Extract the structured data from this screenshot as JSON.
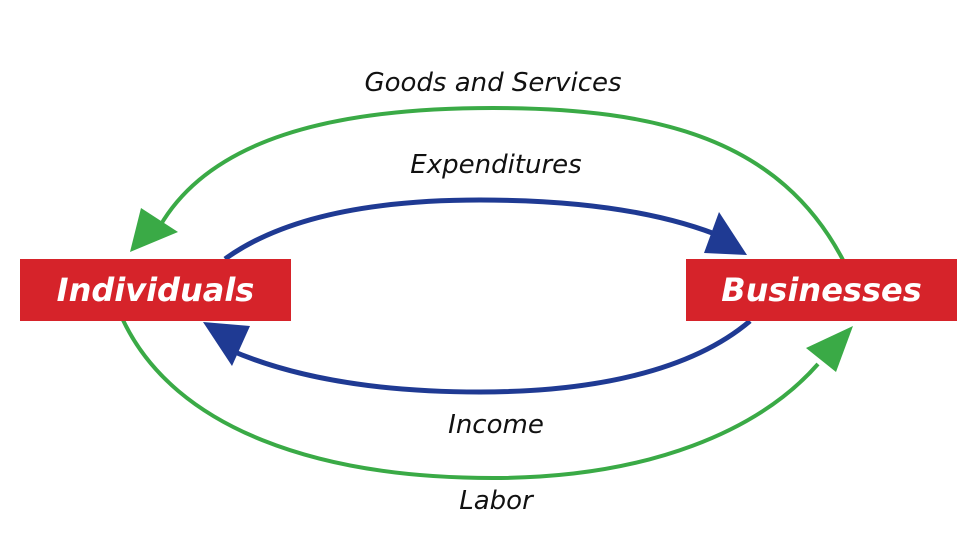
{
  "nodes": {
    "individuals": {
      "label": "Individuals"
    },
    "businesses": {
      "label": "Businesses"
    }
  },
  "flows": {
    "goods_services": {
      "label": "Goods and Services",
      "from": "Businesses",
      "to": "Individuals"
    },
    "expenditures": {
      "label": "Expenditures",
      "from": "Individuals",
      "to": "Businesses"
    },
    "income": {
      "label": "Income",
      "from": "Businesses",
      "to": "Individuals"
    },
    "labor": {
      "label": "Labor",
      "from": "Individuals",
      "to": "Businesses"
    }
  },
  "colors": {
    "node_fill": "#d6232a",
    "node_text": "#ffffff",
    "outer_flow": "#3aaa46",
    "inner_flow": "#1f3a93"
  }
}
